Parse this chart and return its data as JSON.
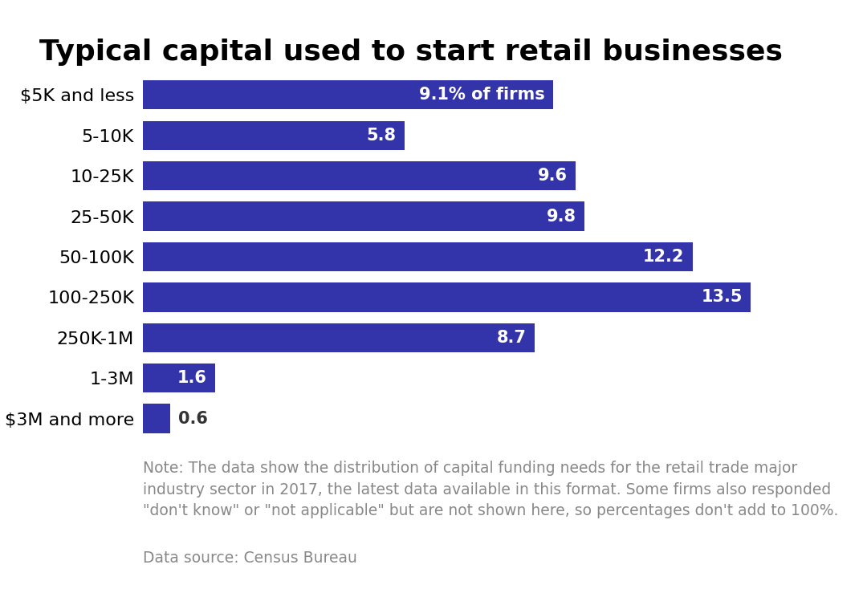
{
  "title": "Typical capital used to start retail businesses",
  "categories": [
    "$5K and less",
    "5-10K",
    "10-25K",
    "25-50K",
    "50-100K",
    "100-250K",
    "250K-1M",
    "1-3M",
    "$3M and more"
  ],
  "values": [
    9.1,
    5.8,
    9.6,
    9.8,
    12.2,
    13.5,
    8.7,
    1.6,
    0.6
  ],
  "bar_color": "#3333aa",
  "label_color_inside": "#ffffff",
  "label_color_outside": "#333333",
  "first_bar_label": "9.1% of firms",
  "note_text": "Note: The data show the distribution of capital funding needs for the retail trade major\nindustry sector in 2017, the latest data available in this format. Some firms also responded\n\"don't know\" or \"not applicable\" but are not shown here, so percentages don't add to 100%.",
  "source_text": "Data source: Census Bureau",
  "title_fontsize": 26,
  "label_fontsize": 15,
  "tick_fontsize": 16,
  "note_fontsize": 13.5,
  "background_color": "#ffffff",
  "xlim": [
    0,
    15.5
  ],
  "inside_threshold": 0.8,
  "note_color": "#888888",
  "source_color": "#888888"
}
